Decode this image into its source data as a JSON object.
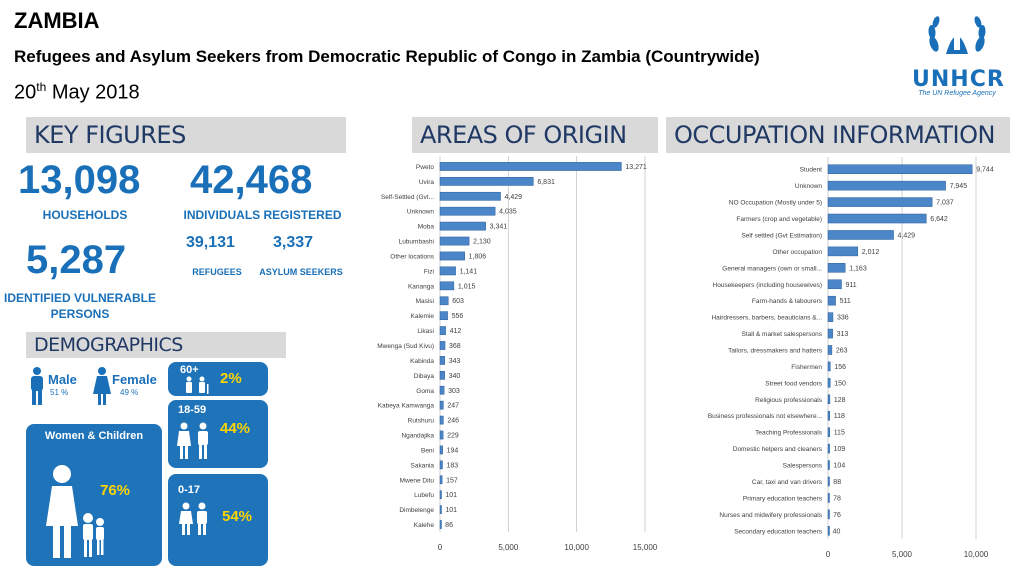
{
  "header": {
    "title": "ZAMBIA",
    "subtitle": "Refugees and Asylum Seekers from Democratic Republic of Congo in Zambia (Countrywide)",
    "date_day": "20",
    "date_sup": "th",
    "date_rest": " May 2018",
    "logo_name": "UNHCR",
    "logo_tagline": "The UN Refugee Agency"
  },
  "key_figures": {
    "heading": "KEY FIGURES",
    "households_value": "13,098",
    "households_label": "HOUSEHOLDS",
    "individuals_value": "42,468",
    "individuals_label": "INDIVIDUALS REGISTERED",
    "refugees_value": "39,131",
    "refugees_label": "REFUGEES",
    "asylum_value": "3,337",
    "asylum_label": "ASYLUM SEEKERS",
    "vulnerable_value": "5,287",
    "vulnerable_label": "IDENTIFIED VULNERABLE PERSONS"
  },
  "demographics": {
    "heading": "DEMOGRAPHICS",
    "male_label": "Male",
    "male_pct": "51 %",
    "female_label": "Female",
    "female_pct": "49 %",
    "women_children_label": "Women & Children",
    "women_children_pct": "76%",
    "age_60_label": "60+",
    "age_60_pct": "2%",
    "age_18_label": "18-59",
    "age_18_pct": "44%",
    "age_0_label": "0-17",
    "age_0_pct": "54%"
  },
  "colors": {
    "accent": "#1a70b8",
    "bar": "#4a86c8",
    "highlight": "#ffd400",
    "banner": "#d9d9d9"
  },
  "chart_data": [
    {
      "type": "bar",
      "orientation": "horizontal",
      "title": "AREAS OF ORIGIN",
      "categories": [
        "Pweto",
        "Uvira",
        "Self-Settled (Gvt...",
        "Unknown",
        "Moba",
        "Lubumbashi",
        "Other locations",
        "Fizi",
        "Kananga",
        "Masisi",
        "Kalemie",
        "Likasi",
        "Mwenga (Sud Kivu)",
        "Kabinda",
        "Dibaya",
        "Goma",
        "Kabeya Kamwanga",
        "Rutshuru",
        "Ngandajika",
        "Beni",
        "Sakania",
        "Mwene Ditu",
        "Lubefu",
        "Dimbelenge",
        "Kalehe"
      ],
      "values": [
        13271,
        6831,
        4429,
        4035,
        3341,
        2130,
        1806,
        1141,
        1015,
        603,
        556,
        412,
        368,
        343,
        340,
        303,
        247,
        246,
        229,
        194,
        183,
        157,
        101,
        101,
        86
      ],
      "data_labels": [
        "13,271",
        "6,831",
        "4,429",
        "4,035",
        "3,341",
        "2,130",
        "1,806",
        "1,141",
        "1,015",
        "603",
        "556",
        "412",
        "368",
        "343",
        "340",
        "303",
        "247",
        "246",
        "229",
        "194",
        "183",
        "157",
        "101",
        "101",
        "86"
      ],
      "xlim": [
        0,
        15000
      ],
      "xticks": [
        "0",
        "5,000",
        "10,000",
        "15,000"
      ],
      "grid": true
    },
    {
      "type": "bar",
      "orientation": "horizontal",
      "title": "OCCUPATION INFORMATION",
      "categories": [
        "Student",
        "Unknown",
        "NO Occupation (Mostly under 5)",
        "Farmers (crop and vegetable)",
        "Self settled (Gvt Estimation)",
        "Other occupation",
        "General managers (own or small...",
        "Housekeepers (including housewives)",
        "Farm-hands & labourers",
        "Hairdressers, barbers, beauticians &...",
        "Stall & market salespersons",
        "Tailors, dressmakers and hatters",
        "Fishermen",
        "Street food vendors",
        "Religious professionals",
        "Business professionals not elsewhere...",
        "Teaching Professionals",
        "Domestic helpers and cleaners",
        "Salespersons",
        "Car, taxi and van drivers",
        "Primary education teachers",
        "Nurses and midwifery professionals",
        "Secondary education teachers"
      ],
      "values": [
        9744,
        7945,
        7037,
        6642,
        4429,
        2012,
        1163,
        911,
        511,
        336,
        313,
        263,
        156,
        150,
        128,
        118,
        115,
        109,
        104,
        88,
        78,
        76,
        40
      ],
      "data_labels": [
        "9,744",
        "7,945",
        "7,037",
        "6,642",
        "4,429",
        "2,012",
        "1,163",
        "911",
        "511",
        "336",
        "313",
        "263",
        "156",
        "150",
        "128",
        "118",
        "115",
        "109",
        "104",
        "88",
        "78",
        "76",
        "40"
      ],
      "xlim": [
        0,
        10000
      ],
      "xticks": [
        "0",
        "5,000",
        "10,000"
      ],
      "grid": true
    }
  ]
}
